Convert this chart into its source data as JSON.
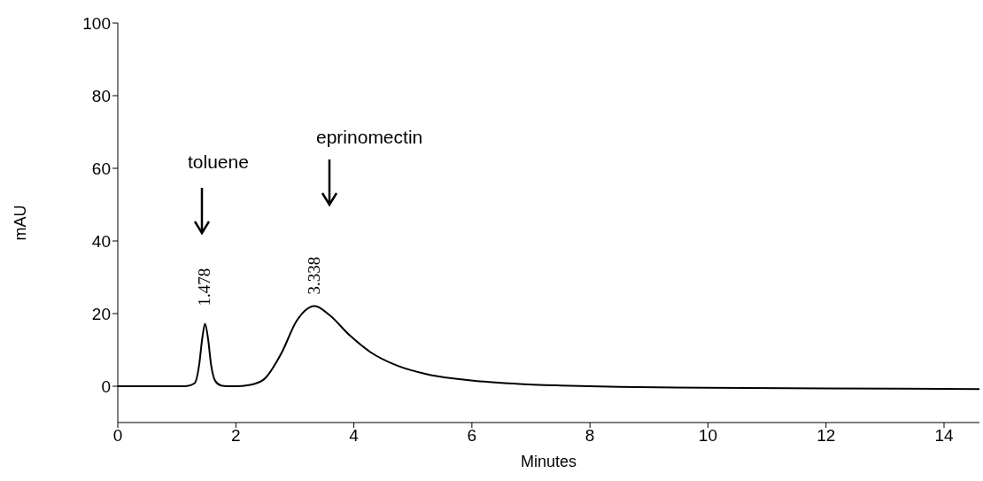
{
  "chart_data": {
    "type": "line",
    "xlabel": "Minutes",
    "ylabel": "mAU",
    "xlim": [
      0,
      14.6
    ],
    "xticks": [
      0,
      2,
      4,
      6,
      8,
      10,
      12,
      14
    ],
    "ylim": [
      -10,
      100
    ],
    "yticks": [
      0,
      20,
      40,
      60,
      80,
      100
    ],
    "marker": "none",
    "line_style": "solid",
    "series": [
      {
        "color": "#000000",
        "x": [
          0,
          1.15,
          1.3,
          1.38,
          1.43,
          1.478,
          1.53,
          1.58,
          1.65,
          1.75,
          1.85,
          2.0,
          2.22,
          2.47,
          2.77,
          3.03,
          3.338,
          3.58,
          3.93,
          4.28,
          4.73,
          5.24,
          5.99,
          6.75,
          7.5,
          8.5,
          10,
          12,
          14.6
        ],
        "values": [
          0,
          0,
          0.8,
          6,
          13,
          17.2,
          13,
          6,
          1.5,
          0.2,
          0,
          0,
          0.3,
          1.8,
          9,
          18,
          22.1,
          19.7,
          14,
          9.4,
          5.7,
          3.3,
          1.6,
          0.7,
          0.2,
          -0.2,
          -0.4,
          -0.6,
          -0.8
        ]
      }
    ],
    "annotations": [
      "toluene",
      "eprinomectin",
      {
        "text": "1.478",
        "x": 1.478,
        "y": 17.2
      },
      {
        "text": "3.338",
        "x": 3.338,
        "y": 22.1
      }
    ]
  }
}
